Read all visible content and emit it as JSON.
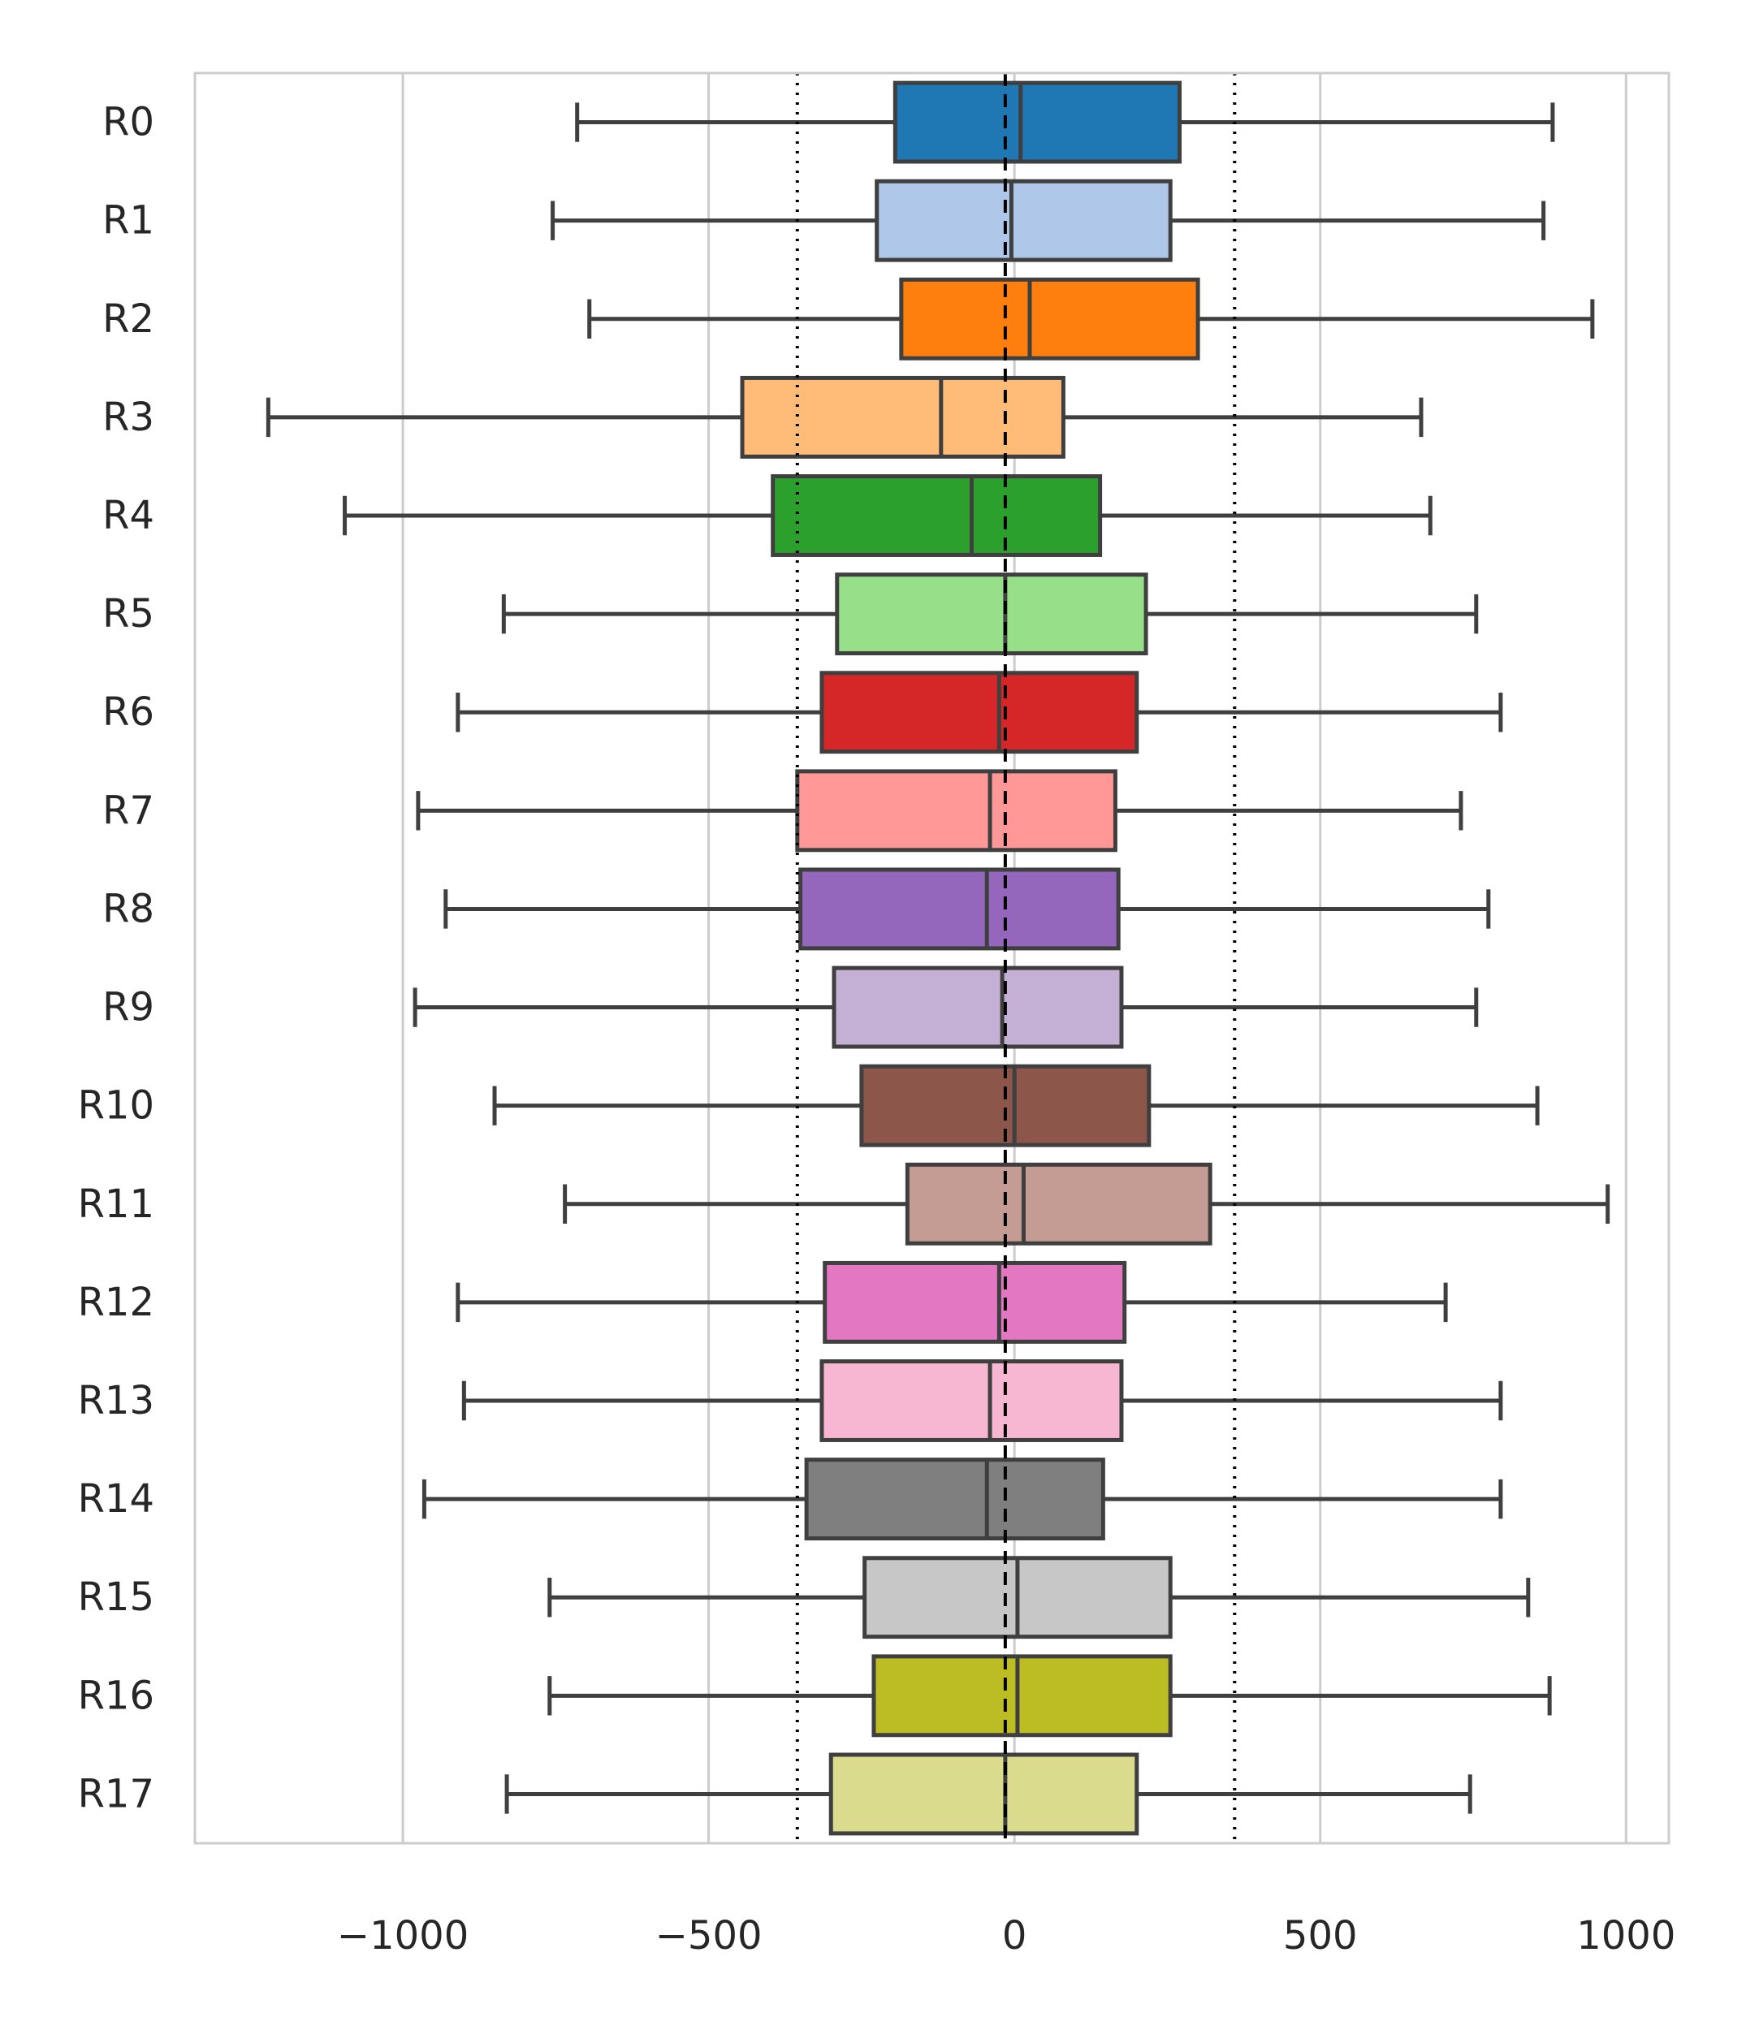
{
  "chart_data": {
    "type": "boxplot",
    "orientation": "horizontal",
    "title": "",
    "xlabel": "",
    "ylabel": "",
    "xlim": [
      -1340,
      1070
    ],
    "xticks": [
      -1000,
      -500,
      0,
      500,
      1000
    ],
    "xtick_labels": [
      "−1000",
      "−500",
      "0",
      "500",
      "1000"
    ],
    "grid": "vertical",
    "reference_lines": [
      {
        "x": -15,
        "style": "dashed",
        "color": "#000000"
      },
      {
        "x": -355,
        "style": "dotted",
        "color": "#000000"
      },
      {
        "x": 360,
        "style": "dotted",
        "color": "#000000"
      }
    ],
    "categories": [
      "R0",
      "R1",
      "R2",
      "R3",
      "R4",
      "R5",
      "R6",
      "R7",
      "R8",
      "R9",
      "R10",
      "R11",
      "R12",
      "R13",
      "R14",
      "R15",
      "R16",
      "R17"
    ],
    "boxes": [
      {
        "label": "R0",
        "whislo": -715,
        "q1": -195,
        "med": 10,
        "q3": 270,
        "whishi": 880,
        "color": "#1f77b4"
      },
      {
        "label": "R1",
        "whislo": -755,
        "q1": -225,
        "med": -5,
        "q3": 255,
        "whishi": 865,
        "color": "#aec7e8"
      },
      {
        "label": "R2",
        "whislo": -695,
        "q1": -185,
        "med": 25,
        "q3": 300,
        "whishi": 945,
        "color": "#ff7f0e"
      },
      {
        "label": "R3",
        "whislo": -1220,
        "q1": -445,
        "med": -120,
        "q3": 80,
        "whishi": 665,
        "color": "#ffbb78"
      },
      {
        "label": "R4",
        "whislo": -1095,
        "q1": -395,
        "med": -70,
        "q3": 140,
        "whishi": 680,
        "color": "#2ca02c"
      },
      {
        "label": "R5",
        "whislo": -835,
        "q1": -290,
        "med": -15,
        "q3": 215,
        "whishi": 755,
        "color": "#98df8a"
      },
      {
        "label": "R6",
        "whislo": -910,
        "q1": -315,
        "med": -25,
        "q3": 200,
        "whishi": 795,
        "color": "#d62728"
      },
      {
        "label": "R7",
        "whislo": -975,
        "q1": -355,
        "med": -40,
        "q3": 165,
        "whishi": 730,
        "color": "#ff9896"
      },
      {
        "label": "R8",
        "whislo": -930,
        "q1": -350,
        "med": -45,
        "q3": 170,
        "whishi": 775,
        "color": "#9467bd"
      },
      {
        "label": "R9",
        "whislo": -980,
        "q1": -295,
        "med": -20,
        "q3": 175,
        "whishi": 755,
        "color": "#c5b0d5"
      },
      {
        "label": "R10",
        "whislo": -850,
        "q1": -250,
        "med": 0,
        "q3": 220,
        "whishi": 855,
        "color": "#8c564b"
      },
      {
        "label": "R11",
        "whislo": -735,
        "q1": -175,
        "med": 15,
        "q3": 320,
        "whishi": 970,
        "color": "#c49c94"
      },
      {
        "label": "R12",
        "whislo": -910,
        "q1": -310,
        "med": -25,
        "q3": 180,
        "whishi": 705,
        "color": "#e377c2"
      },
      {
        "label": "R13",
        "whislo": -900,
        "q1": -315,
        "med": -40,
        "q3": 175,
        "whishi": 795,
        "color": "#f7b6d2"
      },
      {
        "label": "R14",
        "whislo": -965,
        "q1": -340,
        "med": -45,
        "q3": 145,
        "whishi": 795,
        "color": "#7f7f7f"
      },
      {
        "label": "R15",
        "whislo": -760,
        "q1": -245,
        "med": 5,
        "q3": 255,
        "whishi": 840,
        "color": "#c7c7c7"
      },
      {
        "label": "R16",
        "whislo": -760,
        "q1": -230,
        "med": 5,
        "q3": 255,
        "whishi": 875,
        "color": "#bcbd22"
      },
      {
        "label": "R17",
        "whislo": -830,
        "q1": -300,
        "med": -15,
        "q3": 200,
        "whishi": 745,
        "color": "#dbdb8d"
      }
    ]
  }
}
